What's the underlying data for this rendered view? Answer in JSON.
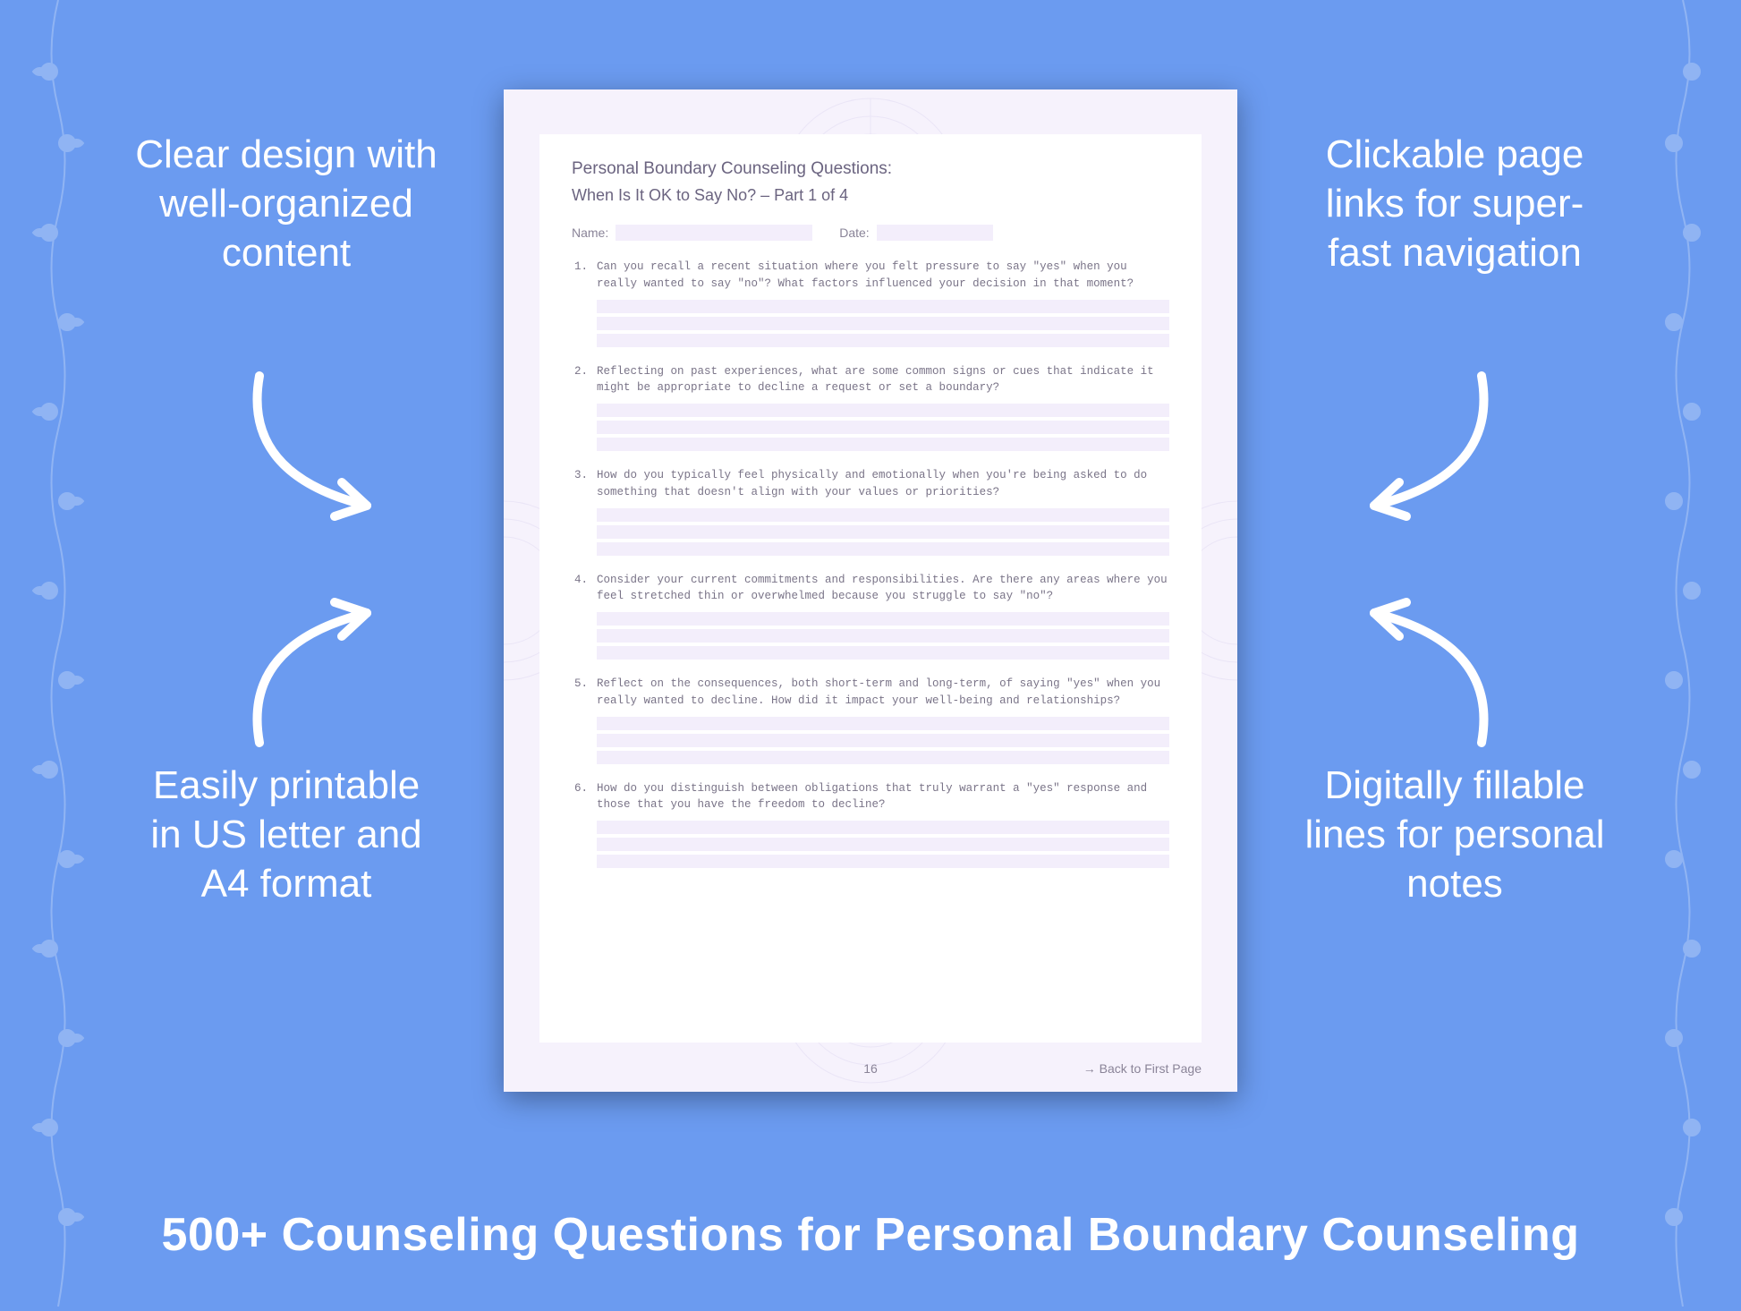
{
  "background_color": "#6b9bf0",
  "page_bg": "#f6f2fc",
  "content_bg": "#ffffff",
  "field_bg": "#f3eefb",
  "text_muted": "#8a8498",
  "text_heading": "#6b6480",
  "callouts": {
    "top_left": "Clear design with well-organized content",
    "top_right": "Clickable page links for super-fast navigation",
    "bottom_left": "Easily printable in US letter and A4 format",
    "bottom_right": "Digitally fillable lines for personal notes"
  },
  "headline": "500+ Counseling Questions for Personal Boundary Counseling",
  "document": {
    "title": "Personal Boundary Counseling Questions:",
    "subtitle": "When Is It OK to Say No? – Part 1 of 4",
    "name_label": "Name:",
    "date_label": "Date:",
    "page_number": "16",
    "back_link": "→ Back to First Page",
    "questions": [
      {
        "n": "1.",
        "text": "Can you recall a recent situation where you felt pressure to say \"yes\" when you really wanted to say \"no\"? What factors influenced your decision in that moment?"
      },
      {
        "n": "2.",
        "text": "Reflecting on past experiences, what are some common signs or cues that indicate it might be appropriate to decline a request or set a boundary?"
      },
      {
        "n": "3.",
        "text": "How do you typically feel physically and emotionally when you're being asked to do something that doesn't align with your values or priorities?"
      },
      {
        "n": "4.",
        "text": "Consider your current commitments and responsibilities. Are there any areas where you feel stretched thin or overwhelmed because you struggle to say \"no\"?"
      },
      {
        "n": "5.",
        "text": "Reflect on the consequences, both short-term and long-term, of saying \"yes\" when you really wanted to decline. How did it impact your well-being and relationships?"
      },
      {
        "n": "6.",
        "text": "How do you distinguish between obligations that truly warrant a \"yes\" response and those that you have the freedom to decline?"
      }
    ],
    "answer_lines_per_question": 3
  },
  "style": {
    "callout_fontsize": 44,
    "headline_fontsize": 52,
    "doc_title_fontsize": 19,
    "doc_subtitle_fontsize": 18,
    "question_fontsize": 12.5,
    "question_font": "Courier New, monospace"
  }
}
